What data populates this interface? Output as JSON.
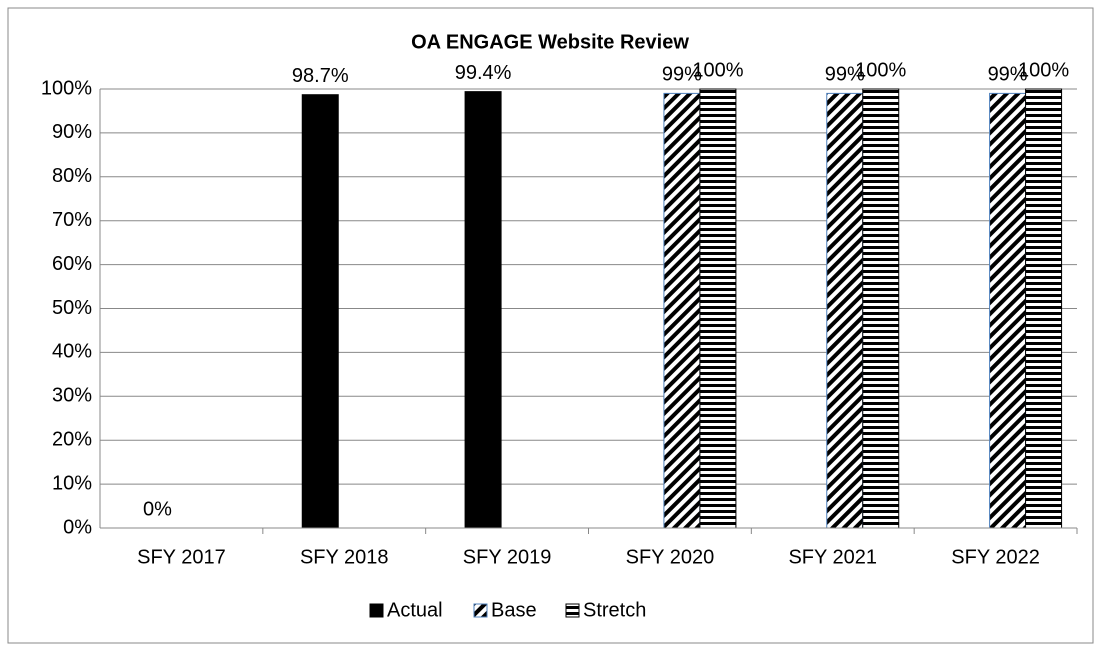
{
  "chart_data": {
    "type": "bar",
    "title": "OA ENGAGE Website Review",
    "categories": [
      "SFY 2017",
      "SFY 2018",
      "SFY 2019",
      "SFY 2020",
      "SFY 2021",
      "SFY 2022"
    ],
    "series": [
      {
        "name": "Actual",
        "color": "#000000",
        "pattern": "solid",
        "values": [
          0,
          98.7,
          99.4,
          null,
          null,
          null
        ],
        "value_labels": [
          "0%",
          "98.7%",
          "99.4%",
          null,
          null,
          null
        ]
      },
      {
        "name": "Base",
        "color": "#000000",
        "pattern": "diagonal",
        "values": [
          null,
          null,
          null,
          99,
          99,
          99
        ],
        "value_labels": [
          null,
          null,
          null,
          "99%",
          "99%",
          "99%"
        ]
      },
      {
        "name": "Stretch",
        "color": "#000000",
        "pattern": "horizontal",
        "values": [
          null,
          null,
          null,
          100,
          100,
          100
        ],
        "value_labels": [
          null,
          null,
          null,
          "100%",
          "100%",
          "100%"
        ]
      }
    ],
    "ylim": [
      0,
      100
    ],
    "yticks": [
      {
        "value": 0,
        "label": "0%"
      },
      {
        "value": 10,
        "label": "10%"
      },
      {
        "value": 20,
        "label": "20%"
      },
      {
        "value": 30,
        "label": "30%"
      },
      {
        "value": 40,
        "label": "40%"
      },
      {
        "value": 50,
        "label": "50%"
      },
      {
        "value": 60,
        "label": "60%"
      },
      {
        "value": 70,
        "label": "70%"
      },
      {
        "value": 80,
        "label": "80%"
      },
      {
        "value": 90,
        "label": "90%"
      },
      {
        "value": 100,
        "label": "100%"
      }
    ],
    "grid": true,
    "legend": "bottom"
  }
}
